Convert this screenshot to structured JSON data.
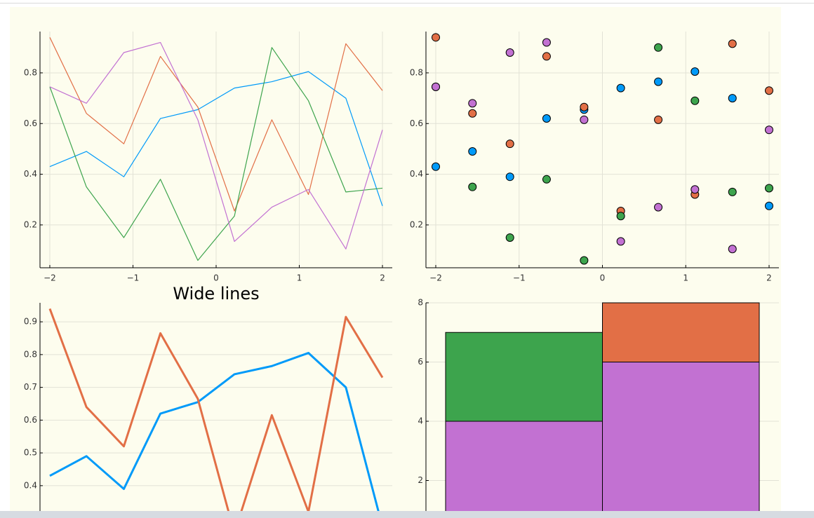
{
  "chart_data": [
    {
      "type": "line",
      "x": [
        -2,
        -1.56,
        -1.11,
        -0.67,
        -0.22,
        0.22,
        0.67,
        1.11,
        1.56,
        2
      ],
      "series": [
        {
          "color": "#009af9",
          "values": [
            0.43,
            0.49,
            0.39,
            0.62,
            0.655,
            0.74,
            0.765,
            0.805,
            0.7,
            0.275
          ]
        },
        {
          "color": "#e26f46",
          "values": [
            0.94,
            0.64,
            0.52,
            0.865,
            0.665,
            0.255,
            0.615,
            0.32,
            0.915,
            0.73
          ]
        },
        {
          "color": "#3da44d",
          "values": [
            0.745,
            0.35,
            0.15,
            0.38,
            0.06,
            0.235,
            0.9,
            0.69,
            0.33,
            0.345
          ]
        },
        {
          "color": "#c271d2",
          "values": [
            0.745,
            0.68,
            0.88,
            0.92,
            0.615,
            0.135,
            0.27,
            0.34,
            0.105,
            0.575
          ]
        }
      ],
      "xlim": [
        -2.118,
        2.118
      ],
      "ylim": [
        0.031,
        0.963
      ],
      "xticks": [
        {
          "value": -2,
          "label": "−2"
        },
        {
          "value": -1,
          "label": "−1"
        },
        0,
        1,
        2
      ],
      "yticks": [
        0.2,
        0.4,
        0.6,
        0.8
      ],
      "grid": true
    },
    {
      "type": "scatter",
      "x": [
        -2,
        -1.56,
        -1.11,
        -0.67,
        -0.22,
        0.22,
        0.67,
        1.11,
        1.56,
        2
      ],
      "series": [
        {
          "color": "#009af9",
          "values": [
            0.43,
            0.49,
            0.39,
            0.62,
            0.655,
            0.74,
            0.765,
            0.805,
            0.7,
            0.275
          ]
        },
        {
          "color": "#e26f46",
          "values": [
            0.94,
            0.64,
            0.52,
            0.865,
            0.665,
            0.255,
            0.615,
            0.32,
            0.915,
            0.73
          ]
        },
        {
          "color": "#3da44d",
          "values": [
            0.745,
            0.35,
            0.15,
            0.38,
            0.06,
            0.235,
            0.9,
            0.69,
            0.33,
            0.345
          ]
        },
        {
          "color": "#c271d2",
          "values": [
            0.745,
            0.68,
            0.88,
            0.92,
            0.615,
            0.135,
            0.27,
            0.34,
            0.105,
            0.575
          ]
        }
      ],
      "xlim": [
        -2.118,
        2.118
      ],
      "ylim": [
        0.031,
        0.963
      ],
      "xticks": [
        {
          "value": -2,
          "label": "−2"
        },
        {
          "value": -1,
          "label": "−1"
        },
        0,
        1,
        2
      ],
      "yticks": [
        0.2,
        0.4,
        0.6,
        0.8
      ],
      "grid": true
    },
    {
      "type": "line",
      "title": "Wide lines",
      "line_width": 3,
      "x": [
        -2,
        -1.56,
        -1.11,
        -0.67,
        -0.22,
        0.22,
        0.67,
        1.11,
        1.56,
        2
      ],
      "series": [
        {
          "color": "#009af9",
          "values": [
            0.43,
            0.49,
            0.39,
            0.62,
            0.655,
            0.74,
            0.765,
            0.805,
            0.7,
            0.275
          ]
        },
        {
          "color": "#e26f46",
          "values": [
            0.94,
            0.64,
            0.52,
            0.865,
            0.665,
            0.255,
            0.615,
            0.32,
            0.915,
            0.73
          ]
        }
      ],
      "xlim": [
        -2.118,
        2.118
      ],
      "ylim": [
        0.235,
        0.958
      ],
      "yticks": [
        0.4,
        0.5,
        0.6,
        0.7,
        0.8,
        0.9
      ],
      "grid": true
    },
    {
      "type": "stacked_bar",
      "categories": [
        null,
        null
      ],
      "series": [
        {
          "color": "#c271d2",
          "values": [
            4,
            6
          ]
        },
        {
          "color": "#3da44d",
          "values": [
            3,
            0
          ]
        },
        {
          "color": "#e26f46",
          "values": [
            0,
            2
          ]
        }
      ],
      "ylim": [
        0,
        8
      ],
      "yticks": [
        2,
        4,
        6,
        8
      ],
      "grid": true
    }
  ]
}
